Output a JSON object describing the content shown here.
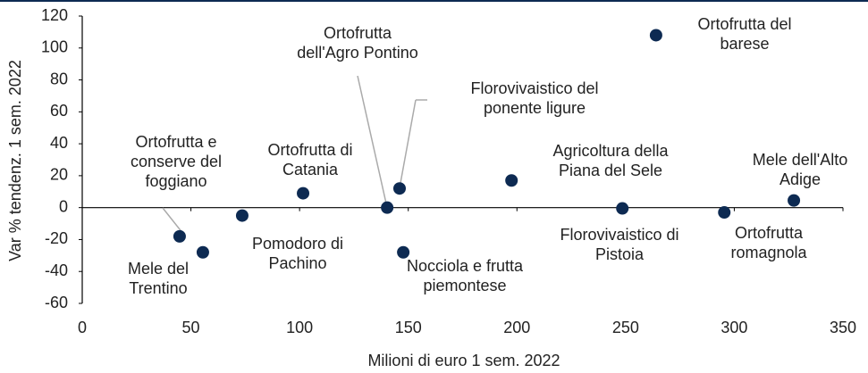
{
  "chart_data": {
    "type": "scatter",
    "xlabel": "Milioni di euro 1 sem. 2022",
    "ylabel": "Var % tendenz. 1 sem. 2022",
    "labels": [
      "Mele del Trentino",
      "Ortofrutta e conserve del foggiano",
      "Pomodoro di Pachino",
      "Ortofrutta di Catania",
      "Ortofrutta dell'Agro Pontino",
      "Florovivaistico del ponente ligure",
      "Nocciola e frutta piemontese",
      "Agricoltura della Piana del Sele",
      "Florovivaistico di Pistoia",
      "Ortofrutta del barese",
      "Ortofrutta romagnola",
      "Mele dell'Alto Adige"
    ],
    "x": [
      55.5,
      44.8,
      73.6,
      101.6,
      140.3,
      146,
      147.7,
      197.5,
      248.5,
      264,
      295.4,
      327.4
    ],
    "values": [
      -28,
      -18,
      -5,
      9,
      0,
      12,
      -28,
      17,
      -0.5,
      108,
      -3,
      4.5
    ],
    "color": "#0d2a52",
    "xlim": [
      0,
      350
    ],
    "xticks": [
      0,
      50,
      100,
      150,
      200,
      250,
      300,
      350
    ],
    "ylim": [
      -60,
      120
    ],
    "yticks": [
      -60,
      -40,
      -20,
      0,
      20,
      40,
      60,
      80,
      100,
      120
    ],
    "grid": false
  }
}
